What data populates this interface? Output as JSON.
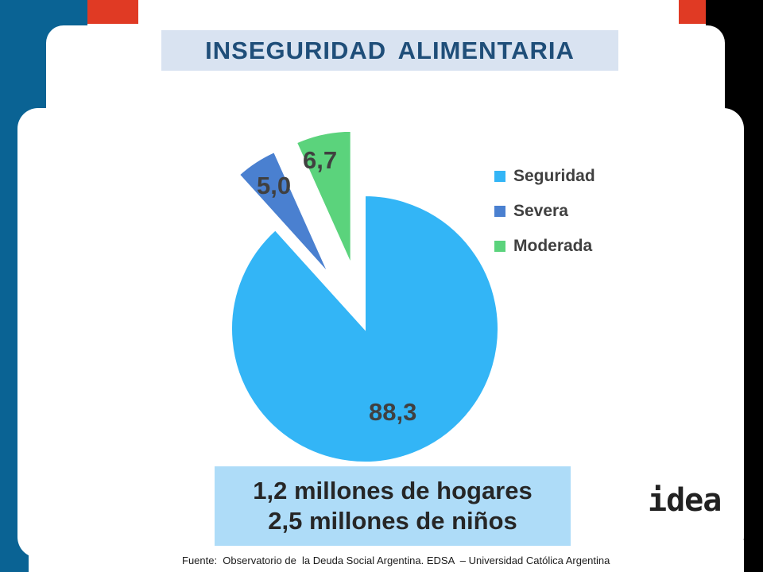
{
  "title": "INSEGURIDAD  ALIMENTARIA",
  "chart_data": {
    "type": "pie",
    "title": "",
    "categories": [
      "Seguridad",
      "Severa",
      "Moderada"
    ],
    "values": [
      88.3,
      5.0,
      6.7
    ],
    "value_labels": [
      "88,3",
      "5,0",
      "6,7"
    ],
    "colors": [
      "#33b5f6",
      "#4a80d0",
      "#5bd37c"
    ],
    "exploded": [
      "Severa",
      "Moderada"
    ],
    "legend_position": "right"
  },
  "summary": {
    "line1": "1,2 millones de hogares",
    "line2": "2,5 millones de niños"
  },
  "source": "Fuente:  Observatorio de  la Deuda Social Argentina. EDSA  – Universidad Católica Argentina",
  "logo_text": "idea"
}
